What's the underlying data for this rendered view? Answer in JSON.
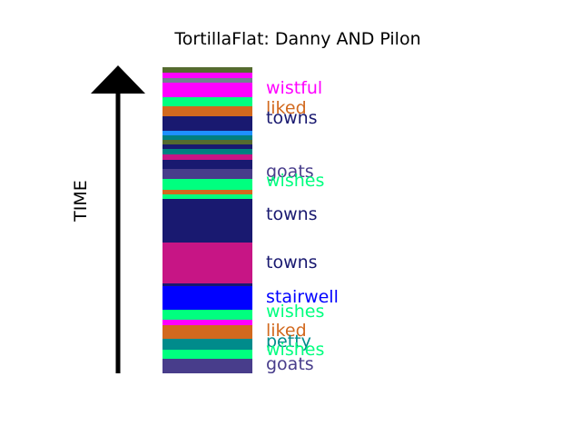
{
  "chart_data": {
    "type": "bar",
    "title": "TortillaFlat: Danny AND Pilon",
    "ylabel": "TIME",
    "segments": [
      {
        "color": "#556b2f"
      },
      {
        "color": "#ff00ff"
      },
      {
        "color": "#708090"
      },
      {
        "color": "#ff00ff"
      },
      {
        "color": "#ff00ff"
      },
      {
        "color": "#00ff7f"
      },
      {
        "color": "#d2691e"
      },
      {
        "color": "#191970"
      },
      {
        "color": "#191970"
      },
      {
        "color": "#1e90ff"
      },
      {
        "color": "#008080"
      },
      {
        "color": "#556b2f"
      },
      {
        "color": "#191970"
      },
      {
        "color": "#008080"
      },
      {
        "color": "#c71585"
      },
      {
        "color": "#191970"
      },
      {
        "color": "#483d8b"
      },
      {
        "color": "#00ff7f"
      },
      {
        "color": "#d2691e"
      },
      {
        "color": "#00ff7f"
      },
      {
        "color": "#191970"
      },
      {
        "color": "#191970"
      },
      {
        "color": "#191970"
      },
      {
        "color": "#c71585"
      },
      {
        "color": "#191970"
      },
      {
        "color": "#191970"
      },
      {
        "color": "#191970"
      },
      {
        "color": "#0000ff"
      },
      {
        "color": "#00ff7f"
      },
      {
        "color": "#ff00ff"
      },
      {
        "color": "#d2691e"
      },
      {
        "color": "#008b8b"
      },
      {
        "color": "#00ff7f"
      },
      {
        "color": "#483d8b"
      }
    ],
    "labels": [
      {
        "text": "wistful",
        "color": "#ff00ff"
      },
      {
        "text": "liked",
        "color": "#d2691e"
      },
      {
        "text": "towns",
        "color": "#191970"
      },
      {
        "text": "goats",
        "color": "#483d8b"
      },
      {
        "text": "wishes",
        "color": "#00ff7f"
      },
      {
        "text": "towns",
        "color": "#191970"
      },
      {
        "text": "towns",
        "color": "#191970"
      },
      {
        "text": "stairwell",
        "color": "#0000ff"
      },
      {
        "text": "wishes",
        "color": "#00ff7f"
      },
      {
        "text": "liked",
        "color": "#d2691e"
      },
      {
        "text": "petty",
        "color": "#008b8b"
      },
      {
        "text": "wishes",
        "color": "#00ff7f"
      },
      {
        "text": "goats",
        "color": "#483d8b"
      }
    ]
  }
}
